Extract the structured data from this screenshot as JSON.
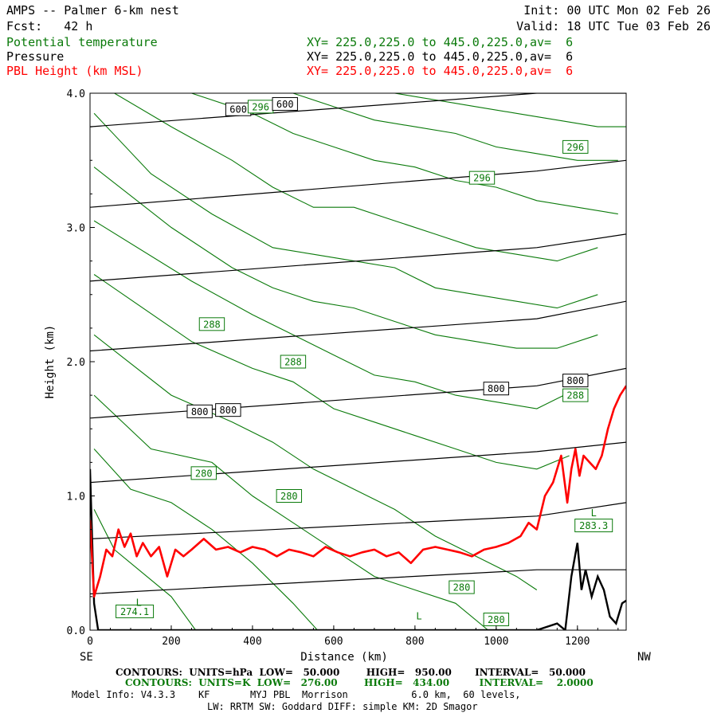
{
  "header": {
    "title": "AMPS -- Palmer 6-km nest",
    "fcst": "Fcst:   42 h",
    "init": "Init: 00 UTC Mon 02 Feb 26",
    "valid": "Valid: 18 UTC Tue 03 Feb 26",
    "fields": [
      {
        "name": "Potential temperature",
        "xy": "XY= 225.0,225.0 to 445.0,225.0,av=  6",
        "color": "#0a7a0a"
      },
      {
        "name": "Pressure",
        "xy": "XY= 225.0,225.0 to 445.0,225.0,av=  6",
        "color": "#000000"
      },
      {
        "name": "PBL Height (km MSL)",
        "xy": "XY= 225.0,225.0 to 445.0,225.0,av=  6",
        "color": "#ff0000"
      }
    ]
  },
  "chart_data": {
    "type": "line",
    "xlabel": "Distance (km)",
    "ylabel": "Height (km)",
    "xlim": [
      0,
      1320
    ],
    "ylim": [
      0,
      4.0
    ],
    "x_ticks": [
      0,
      200,
      400,
      600,
      800,
      1000,
      1200
    ],
    "x_tick_labels": [
      "0",
      "200",
      "400",
      "600",
      "800",
      "1000",
      "1200"
    ],
    "y_ticks": [
      0,
      1,
      2,
      3,
      4
    ],
    "y_tick_labels": [
      "0.0",
      "1.0",
      "2.0",
      "3.0",
      "4.0"
    ],
    "left_end_label": "SE",
    "right_end_label": "NW",
    "pressure_contours": [
      {
        "x": [
          0,
          1100,
          1320
        ],
        "y": [
          0.27,
          0.45,
          0.45
        ]
      },
      {
        "x": [
          0,
          1100,
          1320
        ],
        "y": [
          0.68,
          0.85,
          0.95
        ]
      },
      {
        "x": [
          0,
          1100,
          1320
        ],
        "y": [
          1.1,
          1.33,
          1.4
        ]
      },
      {
        "x": [
          0,
          1100,
          1320
        ],
        "y": [
          1.58,
          1.82,
          1.95
        ]
      },
      {
        "x": [
          0,
          1100,
          1320
        ],
        "y": [
          2.08,
          2.32,
          2.45
        ]
      },
      {
        "x": [
          0,
          1100,
          1320
        ],
        "y": [
          2.6,
          2.85,
          2.95
        ]
      },
      {
        "x": [
          0,
          1100,
          1320
        ],
        "y": [
          3.15,
          3.42,
          3.5
        ]
      },
      {
        "x": [
          0,
          1100,
          1320
        ],
        "y": [
          3.75,
          4.0,
          4.0
        ]
      }
    ],
    "theta_contours": [
      {
        "x": [
          10,
          60,
          120,
          200,
          260
        ],
        "y": [
          0.9,
          0.6,
          0.45,
          0.25,
          0.0
        ]
      },
      {
        "x": [
          10,
          100,
          200,
          300,
          400,
          500,
          560
        ],
        "y": [
          1.35,
          1.05,
          0.95,
          0.75,
          0.5,
          0.2,
          0.0
        ]
      },
      {
        "x": [
          10,
          150,
          300,
          400,
          500,
          600,
          700,
          800,
          900,
          980
        ],
        "y": [
          1.75,
          1.35,
          1.25,
          1.0,
          0.8,
          0.6,
          0.4,
          0.3,
          0.2,
          0.0
        ]
      },
      {
        "x": [
          10,
          200,
          350,
          450,
          550,
          650,
          750,
          850,
          950,
          1050,
          1100
        ],
        "y": [
          2.2,
          1.75,
          1.55,
          1.4,
          1.2,
          1.05,
          0.9,
          0.7,
          0.55,
          0.4,
          0.3
        ]
      },
      {
        "x": [
          10,
          250,
          400,
          500,
          600,
          700,
          800,
          900,
          1000,
          1100,
          1180
        ],
        "y": [
          2.65,
          2.15,
          1.95,
          1.85,
          1.65,
          1.55,
          1.45,
          1.35,
          1.25,
          1.2,
          1.3
        ]
      },
      {
        "x": [
          10,
          250,
          400,
          500,
          600,
          700,
          800,
          900,
          1000,
          1100,
          1200
        ],
        "y": [
          3.05,
          2.6,
          2.35,
          2.2,
          2.05,
          1.9,
          1.85,
          1.75,
          1.7,
          1.65,
          1.8
        ]
      },
      {
        "x": [
          10,
          200,
          350,
          450,
          550,
          650,
          750,
          850,
          950,
          1050,
          1150,
          1250
        ],
        "y": [
          3.45,
          3.0,
          2.7,
          2.55,
          2.45,
          2.4,
          2.3,
          2.2,
          2.15,
          2.1,
          2.1,
          2.2
        ]
      },
      {
        "x": [
          10,
          150,
          300,
          450,
          550,
          650,
          750,
          850,
          950,
          1050,
          1150,
          1250
        ],
        "y": [
          3.85,
          3.4,
          3.1,
          2.85,
          2.8,
          2.75,
          2.7,
          2.55,
          2.5,
          2.45,
          2.4,
          2.5
        ]
      },
      {
        "x": [
          60,
          200,
          350,
          450,
          550,
          650,
          750,
          850,
          950,
          1050,
          1150,
          1250
        ],
        "y": [
          4.0,
          3.75,
          3.5,
          3.3,
          3.15,
          3.15,
          3.05,
          2.95,
          2.85,
          2.8,
          2.75,
          2.85
        ]
      },
      {
        "x": [
          250,
          400,
          500,
          600,
          700,
          800,
          900,
          1000,
          1100,
          1200,
          1300
        ],
        "y": [
          4.0,
          3.85,
          3.7,
          3.6,
          3.5,
          3.45,
          3.35,
          3.3,
          3.2,
          3.15,
          3.1
        ]
      },
      {
        "x": [
          500,
          600,
          700,
          800,
          900,
          1000,
          1100,
          1200,
          1300
        ],
        "y": [
          4.0,
          3.9,
          3.8,
          3.75,
          3.7,
          3.6,
          3.55,
          3.5,
          3.5
        ]
      },
      {
        "x": [
          750,
          850,
          950,
          1050,
          1150,
          1250,
          1320
        ],
        "y": [
          4.0,
          3.95,
          3.9,
          3.85,
          3.8,
          3.75,
          3.75
        ]
      }
    ],
    "pbl_height": {
      "x": [
        0,
        10,
        25,
        40,
        55,
        70,
        85,
        100,
        115,
        130,
        150,
        170,
        190,
        210,
        230,
        250,
        280,
        310,
        340,
        370,
        400,
        430,
        460,
        490,
        520,
        550,
        580,
        610,
        640,
        670,
        700,
        730,
        760,
        790,
        820,
        850,
        880,
        910,
        940,
        970,
        1000,
        1030,
        1060,
        1080,
        1100,
        1120,
        1140,
        1160,
        1175,
        1185,
        1195,
        1205,
        1215,
        1230,
        1245,
        1260,
        1275,
        1290,
        1305,
        1320
      ],
      "y": [
        0.82,
        0.25,
        0.4,
        0.6,
        0.55,
        0.75,
        0.62,
        0.72,
        0.55,
        0.65,
        0.55,
        0.62,
        0.4,
        0.6,
        0.55,
        0.6,
        0.68,
        0.6,
        0.62,
        0.58,
        0.62,
        0.6,
        0.55,
        0.6,
        0.58,
        0.55,
        0.62,
        0.58,
        0.55,
        0.58,
        0.6,
        0.55,
        0.58,
        0.5,
        0.6,
        0.62,
        0.6,
        0.58,
        0.55,
        0.6,
        0.62,
        0.65,
        0.7,
        0.8,
        0.75,
        1.0,
        1.1,
        1.3,
        0.95,
        1.2,
        1.35,
        1.15,
        1.3,
        1.25,
        1.2,
        1.3,
        1.5,
        1.65,
        1.75,
        1.82
      ]
    },
    "terrain": {
      "x": [
        0,
        10,
        20,
        40,
        1100,
        1150,
        1170,
        1185,
        1200,
        1210,
        1220,
        1235,
        1250,
        1265,
        1280,
        1295,
        1310,
        1320
      ],
      "y": [
        1.2,
        0.2,
        0.0,
        0.0,
        0.0,
        0.05,
        0.0,
        0.4,
        0.65,
        0.3,
        0.45,
        0.25,
        0.4,
        0.3,
        0.1,
        0.05,
        0.2,
        0.22
      ]
    },
    "labels": [
      {
        "text": "600",
        "x": 365,
        "y": 3.88,
        "color": "#000000"
      },
      {
        "text": "296",
        "x": 420,
        "y": 3.9,
        "color": "#0a7a0a"
      },
      {
        "text": "600",
        "x": 480,
        "y": 3.92,
        "color": "#000000"
      },
      {
        "text": "296",
        "x": 1195,
        "y": 3.6,
        "color": "#0a7a0a"
      },
      {
        "text": "296",
        "x": 965,
        "y": 3.37,
        "color": "#0a7a0a"
      },
      {
        "text": "288",
        "x": 300,
        "y": 2.28,
        "color": "#0a7a0a"
      },
      {
        "text": "288",
        "x": 500,
        "y": 2.0,
        "color": "#0a7a0a"
      },
      {
        "text": "800",
        "x": 1195,
        "y": 1.86,
        "color": "#000000"
      },
      {
        "text": "800",
        "x": 1000,
        "y": 1.8,
        "color": "#000000"
      },
      {
        "text": "288",
        "x": 1195,
        "y": 1.75,
        "color": "#0a7a0a"
      },
      {
        "text": "800",
        "x": 270,
        "y": 1.63,
        "color": "#000000"
      },
      {
        "text": "800",
        "x": 340,
        "y": 1.64,
        "color": "#000000"
      },
      {
        "text": "280",
        "x": 280,
        "y": 1.17,
        "color": "#0a7a0a"
      },
      {
        "text": "280",
        "x": 490,
        "y": 1.0,
        "color": "#0a7a0a"
      },
      {
        "text": "283.3",
        "x": 1240,
        "y": 0.78,
        "color": "#0a7a0a"
      },
      {
        "text": "280",
        "x": 915,
        "y": 0.32,
        "color": "#0a7a0a"
      },
      {
        "text": "274.1",
        "x": 110,
        "y": 0.14,
        "color": "#0a7a0a"
      },
      {
        "text": "280",
        "x": 1000,
        "y": 0.08,
        "color": "#0a7a0a"
      }
    ],
    "low_markers": [
      {
        "x": 120,
        "y": 0.18
      },
      {
        "x": 810,
        "y": 0.08
      },
      {
        "x": 1240,
        "y": 0.85
      }
    ]
  },
  "footer": {
    "line1": "CONTOURS:  UNITS=hPa  LOW=   50.000        HIGH=   950.00       INTERVAL=   50.000",
    "line2": "CONTOURS:  UNITS=K  LOW=   276.00        HIGH=   434.00         INTERVAL=    2.0000",
    "line3": "Model Info: V4.3.3    KF       MYJ PBL  Morrison           6.0 km,  60 levels,",
    "line4": "LW: RRTM SW: Goddard DIFF: simple KM: 2D Smagor"
  },
  "colors": {
    "theta": "#0a7a0a",
    "pressure": "#000000",
    "pbl": "#ff0000",
    "terrain": "#000000"
  }
}
